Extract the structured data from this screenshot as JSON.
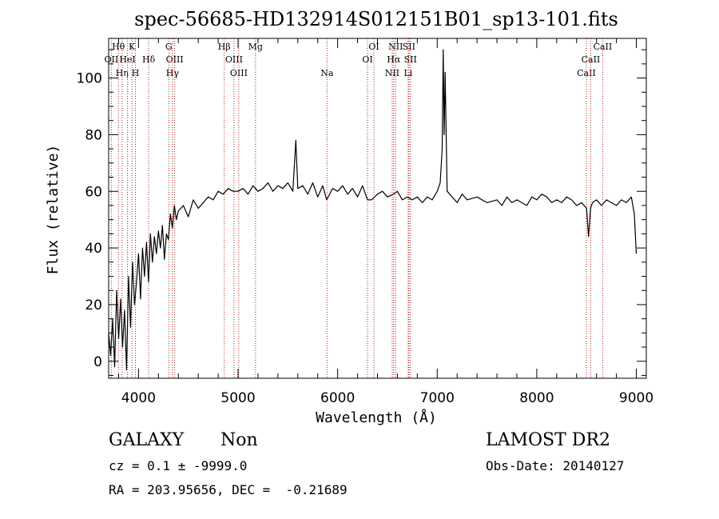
{
  "chart_data": {
    "type": "line",
    "title": "spec-56685-HD132914S012151B01_sp13-101.fits",
    "xlabel": "Wavelength (Å)",
    "ylabel": "Flux (relative)",
    "xlim": [
      3700,
      9100
    ],
    "ylim": [
      -6,
      114
    ],
    "xticks": [
      4000,
      5000,
      6000,
      7000,
      8000,
      9000
    ],
    "yticks": [
      0,
      20,
      40,
      60,
      80,
      100
    ],
    "grid": false,
    "line_color": "#000000",
    "marker_color": "#b22222",
    "series": [
      {
        "x": [
          3700,
          3720,
          3740,
          3760,
          3780,
          3800,
          3820,
          3840,
          3860,
          3880,
          3900,
          3920,
          3940,
          3960,
          3980,
          4000,
          4020,
          4040,
          4060,
          4080,
          4100,
          4120,
          4140,
          4160,
          4180,
          4200,
          4220,
          4240,
          4260,
          4280,
          4300,
          4320,
          4340,
          4360,
          4380,
          4400,
          4450,
          4500,
          4550,
          4600,
          4650,
          4700,
          4750,
          4800,
          4850,
          4900,
          4950,
          5000,
          5050,
          5100,
          5150,
          5200,
          5250,
          5300,
          5350,
          5400,
          5450,
          5500,
          5550,
          5580,
          5600,
          5650,
          5700,
          5750,
          5800,
          5850,
          5890,
          5950,
          6000,
          6050,
          6100,
          6150,
          6200,
          6250,
          6300,
          6340,
          6400,
          6450,
          6500,
          6560,
          6600,
          6650,
          6700,
          6750,
          6800,
          6850,
          6900,
          6950,
          7000,
          7030,
          7050,
          7060,
          7070,
          7080,
          7100,
          7150,
          7200,
          7250,
          7300,
          7400,
          7500,
          7600,
          7650,
          7700,
          7750,
          7800,
          7850,
          7900,
          7950,
          8000,
          8050,
          8100,
          8150,
          8200,
          8250,
          8300,
          8350,
          8400,
          8450,
          8500,
          8520,
          8540,
          8560,
          8600,
          8650,
          8700,
          8750,
          8800,
          8850,
          8900,
          8950,
          8980,
          9000
        ],
        "y": [
          10,
          2,
          15,
          -2,
          25,
          8,
          22,
          5,
          18,
          -3,
          30,
          12,
          35,
          20,
          28,
          38,
          22,
          40,
          30,
          42,
          28,
          45,
          35,
          44,
          38,
          46,
          40,
          48,
          36,
          45,
          43,
          52,
          47,
          55,
          50,
          53,
          55,
          51,
          57,
          54,
          56,
          58,
          57,
          60,
          59,
          61,
          60,
          60,
          61,
          59,
          62,
          60,
          61,
          63,
          60,
          62,
          61,
          63,
          60,
          78,
          61,
          62,
          59,
          63,
          58,
          62,
          57,
          61,
          60,
          62,
          59,
          61,
          58,
          62,
          57,
          57,
          59,
          60,
          58,
          59,
          60,
          57,
          58,
          57,
          58,
          56,
          58,
          57,
          60,
          63,
          75,
          110,
          80,
          102,
          60,
          58,
          56,
          59,
          57,
          58,
          56,
          57,
          55,
          58,
          56,
          57,
          56,
          55,
          58,
          57,
          59,
          58,
          56,
          57,
          56,
          58,
          57,
          55,
          56,
          54,
          44,
          54,
          56,
          57,
          55,
          57,
          56,
          55,
          57,
          56,
          58,
          52,
          38
        ]
      }
    ],
    "line_markers": [
      {
        "label": "Hθ",
        "x": 3798,
        "row": 1
      },
      {
        "label": "OII",
        "x": 3727,
        "row": 2
      },
      {
        "label": "Hη",
        "x": 3835,
        "row": 3
      },
      {
        "label": "HeI",
        "x": 3889,
        "row": 2
      },
      {
        "label": "K",
        "x": 3934,
        "row": 1
      },
      {
        "label": "H",
        "x": 3969,
        "row": 3
      },
      {
        "label": "Hδ",
        "x": 4102,
        "row": 2
      },
      {
        "label": "G",
        "x": 4304,
        "row": 1
      },
      {
        "label": "OIII",
        "x": 4363,
        "row": 2
      },
      {
        "label": "Hγ",
        "x": 4341,
        "row": 3
      },
      {
        "label": "Hβ",
        "x": 4861,
        "row": 1
      },
      {
        "label": "OIII",
        "x": 4959,
        "row": 2
      },
      {
        "label": "OIII",
        "x": 5007,
        "row": 3
      },
      {
        "label": "Mg",
        "x": 5175,
        "row": 1
      },
      {
        "label": "Na",
        "x": 5893,
        "row": 3
      },
      {
        "label": "OI",
        "x": 6300,
        "row": 2
      },
      {
        "label": "OI",
        "x": 6364,
        "row": 1
      },
      {
        "label": "NII",
        "x": 6548,
        "row": 3
      },
      {
        "label": "NII",
        "x": 6583,
        "row": 1
      },
      {
        "label": "Hα",
        "x": 6563,
        "row": 2
      },
      {
        "label": "SII",
        "x": 6716,
        "row": 1
      },
      {
        "label": "SII",
        "x": 6731,
        "row": 2
      },
      {
        "label": "Li",
        "x": 6708,
        "row": 3
      },
      {
        "label": "CaII",
        "x": 8498,
        "row": 3
      },
      {
        "label": "CaII",
        "x": 8542,
        "row": 2
      },
      {
        "label": "CaII",
        "x": 8662,
        "row": 1
      }
    ]
  },
  "info": {
    "classification": "GALAXY",
    "subclass": "Non",
    "survey": "LAMOST DR2",
    "redshift": "cz = 0.1 ± -9999.0",
    "obs_date": "Obs-Date: 20140127",
    "coords": "RA = 203.95656, DEC =  -0.21689"
  }
}
